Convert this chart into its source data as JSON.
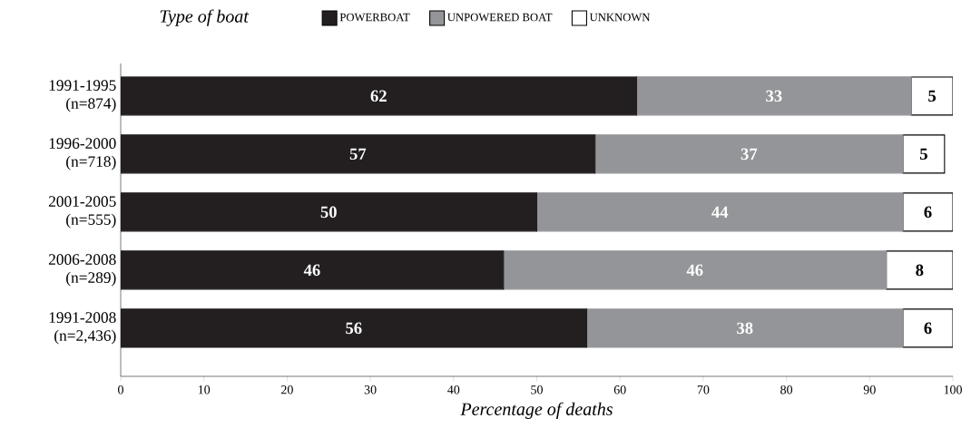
{
  "chart_data": {
    "type": "bar",
    "orientation": "horizontal",
    "stacked": true,
    "legend_title": "Type of boat",
    "xlabel": "Percentage of deaths",
    "categories": [
      "1991-1995 (n=874)",
      "1996-2000 (n=718)",
      "2001-2005 (n=555)",
      "2006-2008 (n=289)",
      "1991-2008 (n=2,436)"
    ],
    "series": [
      {
        "name": "POWERBOAT",
        "color": "#231f20",
        "values": [
          62,
          57,
          50,
          46,
          56
        ]
      },
      {
        "name": "UNPOWERED BOAT",
        "color": "#939598",
        "values": [
          33,
          37,
          44,
          46,
          38
        ]
      },
      {
        "name": "UNKNOWN",
        "color": "#ffffff",
        "values": [
          5,
          5,
          6,
          8,
          6
        ]
      }
    ],
    "xlim": [
      0,
      100
    ],
    "xticks": [
      0,
      10,
      20,
      30,
      40,
      50,
      60,
      70,
      80,
      90,
      100
    ],
    "data_labels": true,
    "legend": "top"
  }
}
